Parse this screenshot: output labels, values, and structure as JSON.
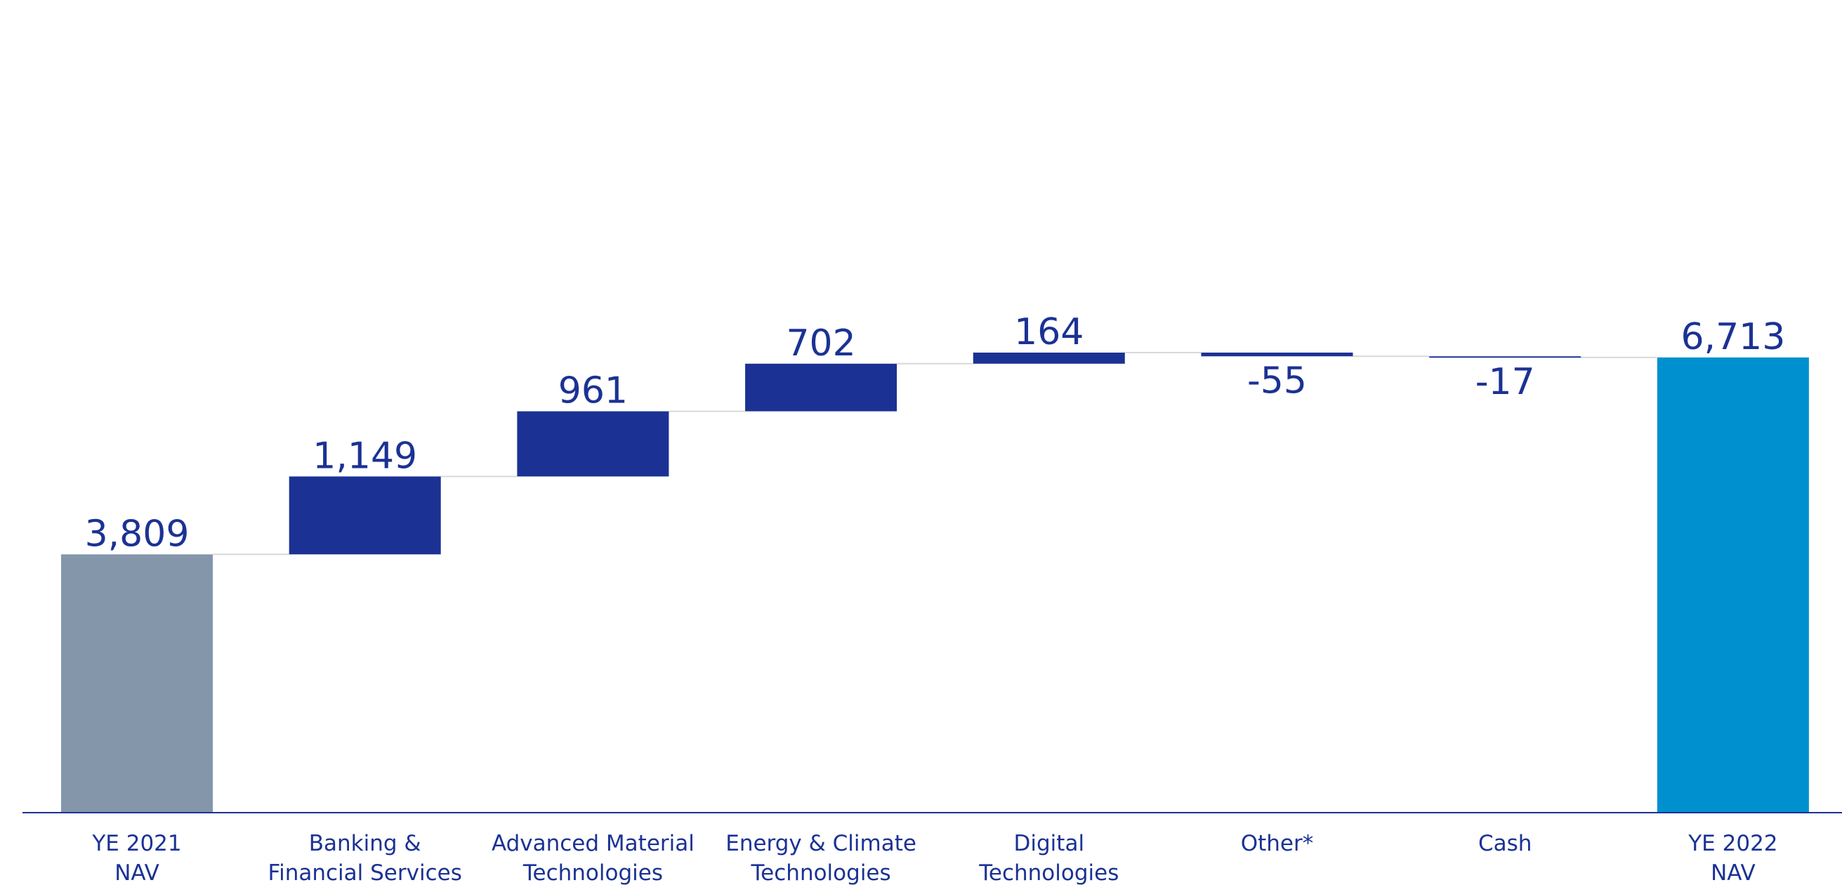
{
  "chart_data": {
    "type": "bar",
    "subtype": "waterfall",
    "title": "",
    "xlabel": "",
    "ylabel": "",
    "ylim": [
      0,
      7000
    ],
    "grid": false,
    "legend": "none",
    "categories": [
      [
        "YE 2021",
        "NAV"
      ],
      [
        "Banking &",
        "Financial Services"
      ],
      [
        "Advanced Material",
        "Technologies"
      ],
      [
        "Energy & Climate",
        "Technologies"
      ],
      [
        "Digital",
        "Technologies"
      ],
      [
        "Other*"
      ],
      [
        "Cash"
      ],
      [
        "YE 2022",
        "NAV"
      ]
    ],
    "values": [
      3809,
      1149,
      961,
      702,
      164,
      -55,
      -17,
      6713
    ],
    "value_labels": [
      "3,809",
      "1,149",
      "961",
      "702",
      "164",
      "-55",
      "-17",
      "6,713"
    ],
    "bar_kinds": [
      "total",
      "delta",
      "delta",
      "delta",
      "delta",
      "delta",
      "delta",
      "total"
    ],
    "colors": {
      "start_total": "#8396aa",
      "end_total": "#0090d0",
      "change": "#1b3294",
      "text": "#1b3294",
      "axis": "#1b3294",
      "connector": "#d9d9d9"
    }
  }
}
